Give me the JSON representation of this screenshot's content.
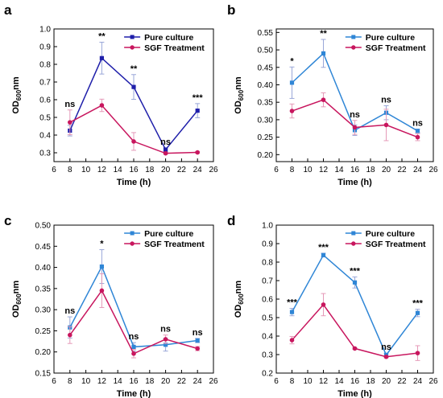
{
  "colors": {
    "pure": "#1f1faa",
    "pure_light": "#2f86d6",
    "sgf": "#c8165e",
    "error": "#9aa7d8",
    "error_sgf": "#e59ab8"
  },
  "chart_data": [
    {
      "panel": "a",
      "type": "line",
      "xlabel": "Time (h)",
      "ylabel_main": "OD",
      "ylabel_sub": "600",
      "ylabel_unit": "nm",
      "xlim": [
        6,
        26
      ],
      "ylim": [
        0.25,
        1.0
      ],
      "xticks": [
        "6",
        "8",
        "10",
        "12",
        "14",
        "16",
        "18",
        "20",
        "22",
        "24",
        "26"
      ],
      "yticks": [
        "0.3",
        "0.4",
        "0.5",
        "0.6",
        "0.7",
        "0.8",
        "0.9",
        "1.0"
      ],
      "legend": "top-right",
      "x": [
        8,
        12,
        16,
        20,
        24
      ],
      "series": [
        {
          "name": "Pure culture",
          "color": "#1f1faa",
          "values": [
            0.425,
            0.835,
            0.672,
            0.318,
            0.538
          ],
          "errors": [
            0.03,
            0.09,
            0.07,
            0.01,
            0.04
          ]
        },
        {
          "name": "SGF Treatment",
          "color": "#c8165e",
          "values": [
            0.472,
            0.568,
            0.364,
            0.297,
            0.302
          ],
          "errors": [
            0.07,
            0.035,
            0.05,
            0.005,
            0.005
          ]
        }
      ],
      "annotations": [
        "ns",
        "**",
        "**",
        "ns",
        "***"
      ]
    },
    {
      "panel": "b",
      "type": "line",
      "xlabel": "Time (h)",
      "ylabel_main": "OD",
      "ylabel_sub": "600",
      "ylabel_unit": "nm",
      "xlim": [
        6,
        26
      ],
      "ylim": [
        0.18,
        0.56
      ],
      "xticks": [
        "6",
        "8",
        "10",
        "12",
        "14",
        "16",
        "18",
        "20",
        "22",
        "24",
        "26"
      ],
      "yticks": [
        "0.20",
        "0.25",
        "0.30",
        "0.35",
        "0.40",
        "0.45",
        "0.50",
        "0.55"
      ],
      "legend": "top-right",
      "x": [
        8,
        12,
        16,
        20,
        24
      ],
      "series": [
        {
          "name": "Pure culture",
          "color": "#2f86d6",
          "values": [
            0.406,
            0.49,
            0.27,
            0.32,
            0.268
          ],
          "errors": [
            0.045,
            0.04,
            0.015,
            0.02,
            0.005
          ]
        },
        {
          "name": "SGF Treatment",
          "color": "#c8165e",
          "values": [
            0.325,
            0.357,
            0.278,
            0.285,
            0.25
          ],
          "errors": [
            0.02,
            0.02,
            0.02,
            0.045,
            0.01
          ]
        }
      ],
      "annotations": [
        "*",
        "**",
        "ns",
        "ns",
        "ns"
      ]
    },
    {
      "panel": "c",
      "type": "line",
      "xlabel": "Time (h)",
      "ylabel_main": "OD",
      "ylabel_sub": "600",
      "ylabel_unit": "nm",
      "xlim": [
        6,
        26
      ],
      "ylim": [
        0.15,
        0.5
      ],
      "xticks": [
        "6",
        "8",
        "10",
        "12",
        "14",
        "16",
        "18",
        "20",
        "22",
        "24",
        "26"
      ],
      "yticks": [
        "0.15",
        "0.20",
        "0.25",
        "0.30",
        "0.35",
        "0.40",
        "0.45",
        "0.50"
      ],
      "legend": "top-right",
      "x": [
        8,
        12,
        16,
        20,
        24
      ],
      "series": [
        {
          "name": "Pure culture",
          "color": "#2f86d6",
          "values": [
            0.258,
            0.402,
            0.212,
            0.217,
            0.227
          ],
          "errors": [
            0.025,
            0.04,
            0.01,
            0.015,
            0.005
          ]
        },
        {
          "name": "SGF Treatment",
          "color": "#c8165e",
          "values": [
            0.24,
            0.345,
            0.196,
            0.23,
            0.208
          ],
          "errors": [
            0.02,
            0.04,
            0.01,
            0.01,
            0.005
          ]
        }
      ],
      "annotations": [
        "ns",
        "*",
        "ns",
        "ns",
        "ns"
      ]
    },
    {
      "panel": "d",
      "type": "line",
      "xlabel": "Time (h)",
      "ylabel_main": "OD",
      "ylabel_sub": "600",
      "ylabel_unit": "nm",
      "xlim": [
        6,
        26
      ],
      "ylim": [
        0.2,
        1.0
      ],
      "xticks": [
        "6",
        "8",
        "10",
        "12",
        "14",
        "16",
        "18",
        "20",
        "22",
        "24",
        "26"
      ],
      "yticks": [
        "0.2",
        "0.3",
        "0.4",
        "0.5",
        "0.6",
        "0.7",
        "0.8",
        "0.9",
        "1.0"
      ],
      "legend": "top-right",
      "x": [
        8,
        12,
        16,
        20,
        24
      ],
      "series": [
        {
          "name": "Pure culture",
          "color": "#2f86d6",
          "values": [
            0.53,
            0.838,
            0.69,
            0.298,
            0.525
          ],
          "errors": [
            0.02,
            0.01,
            0.03,
            0.01,
            0.02
          ]
        },
        {
          "name": "SGF Treatment",
          "color": "#c8165e",
          "values": [
            0.378,
            0.57,
            0.333,
            0.288,
            0.308
          ],
          "errors": [
            0.02,
            0.06,
            0.005,
            0.005,
            0.04
          ]
        }
      ],
      "annotations": [
        "***",
        "***",
        "***",
        "ns",
        "***"
      ]
    }
  ]
}
